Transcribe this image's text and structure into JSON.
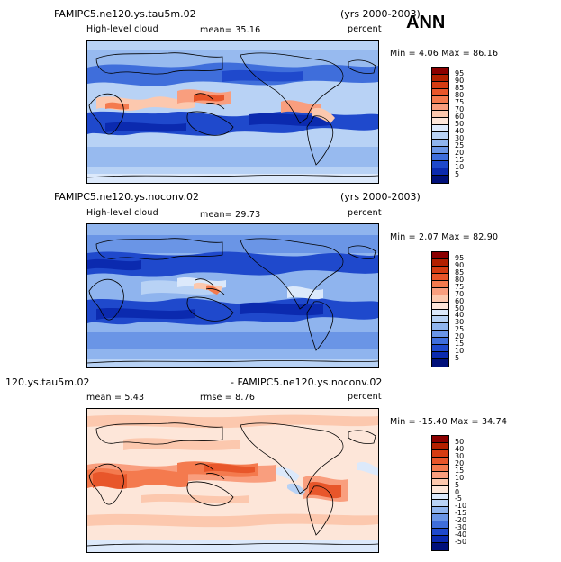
{
  "figure": {
    "season_label": "ANN"
  },
  "panels": [
    {
      "id": "top",
      "case_name": "FAMIPC5.ne120.ys.tau5m.02",
      "years": "(yrs 2000-2003)",
      "variable": "High-level cloud",
      "mean_text": "mean=  35.16",
      "units": "percent",
      "minmax": "Min =   4.06 Max =  86.16",
      "colorbar_labels": [
        "95",
        "90",
        "85",
        "80",
        "75",
        "70",
        "60",
        "50",
        "40",
        "30",
        "25",
        "20",
        "15",
        "10",
        "5"
      ],
      "colorbar_colors": [
        "#8b0000",
        "#b22000",
        "#d43c12",
        "#e8562a",
        "#f47a4e",
        "#f99e7e",
        "#fcc8ae",
        "#fde6d9",
        "#dce9fb",
        "#b8d2f5",
        "#8fb4ee",
        "#6a95e6",
        "#3f6edb",
        "#1f49cc",
        "#0b2aaf",
        "#00107a"
      ]
    },
    {
      "id": "middle",
      "case_name": "FAMIPC5.ne120.ys.noconv.02",
      "years": "(yrs 2000-2003)",
      "variable": "High-level cloud",
      "mean_text": "mean=  29.73",
      "units": "percent",
      "minmax": "Min =   2.07 Max =  82.90",
      "colorbar_labels": [
        "95",
        "90",
        "85",
        "80",
        "75",
        "70",
        "60",
        "50",
        "40",
        "30",
        "25",
        "20",
        "15",
        "10",
        "5"
      ],
      "colorbar_colors": [
        "#8b0000",
        "#b22000",
        "#d43c12",
        "#e8562a",
        "#f47a4e",
        "#f99e7e",
        "#fcc8ae",
        "#fde6d9",
        "#dce9fb",
        "#b8d2f5",
        "#8fb4ee",
        "#6a95e6",
        "#3f6edb",
        "#1f49cc",
        "#0b2aaf",
        "#00107a"
      ]
    },
    {
      "id": "bottom",
      "case_name_left": "120.ys.tau5m.02",
      "case_name_right": "- FAMIPC5.ne120.ys.noconv.02",
      "mean_text": "mean =   5.43",
      "rmse_text": "rmse =   8.76",
      "units": "percent",
      "minmax": "Min = -15.40 Max =  34.74",
      "colorbar_labels": [
        "50",
        "40",
        "30",
        "20",
        "15",
        "10",
        "5",
        "0",
        "-5",
        "-10",
        "-15",
        "-20",
        "-30",
        "-40",
        "-50"
      ],
      "colorbar_colors": [
        "#8b0000",
        "#b22000",
        "#d43c12",
        "#e8562a",
        "#f47a4e",
        "#f99e7e",
        "#fcc8ae",
        "#fde6d9",
        "#dce9fb",
        "#b8d2f5",
        "#8fb4ee",
        "#6a95e6",
        "#3f6edb",
        "#1f49cc",
        "#0b2aaf",
        "#00107a"
      ]
    }
  ],
  "palette": {
    "neutral": "#fde6d9",
    "light_blue": "#b8d2f5",
    "mid_blue": "#6a95e6",
    "deep_blue": "#1f49cc",
    "navy": "#0b2aaf",
    "salmon": "#f99e7e",
    "orange_red": "#e8562a",
    "red": "#d43c12"
  }
}
